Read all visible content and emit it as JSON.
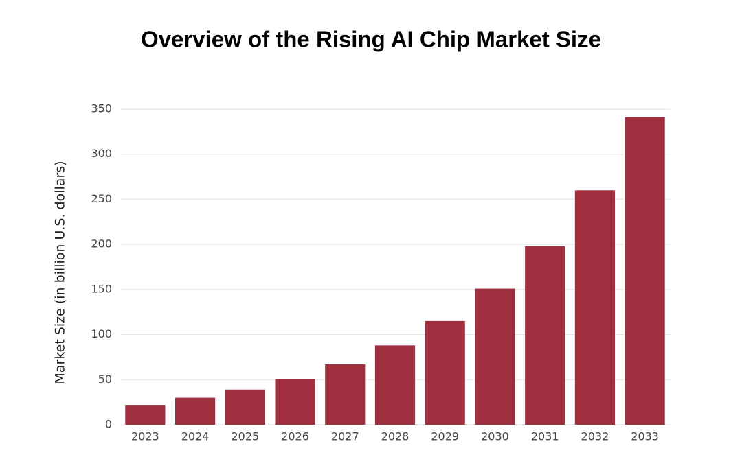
{
  "chart_data": {
    "type": "bar",
    "title": "Overview of the Rising AI Chip Market Size",
    "y_label": "Market Size (in billion U.S. dollars)",
    "categories": [
      "2023",
      "2024",
      "2025",
      "2026",
      "2027",
      "2028",
      "2029",
      "2030",
      "2031",
      "2032",
      "2033"
    ],
    "values": [
      22,
      30,
      39,
      51,
      67,
      88,
      115,
      151,
      198,
      260,
      341
    ],
    "color": "#a0303f",
    "ylim": [
      0,
      350
    ],
    "yticks": [
      0,
      50,
      100,
      150,
      200,
      250,
      300,
      350
    ],
    "grid": true
  }
}
